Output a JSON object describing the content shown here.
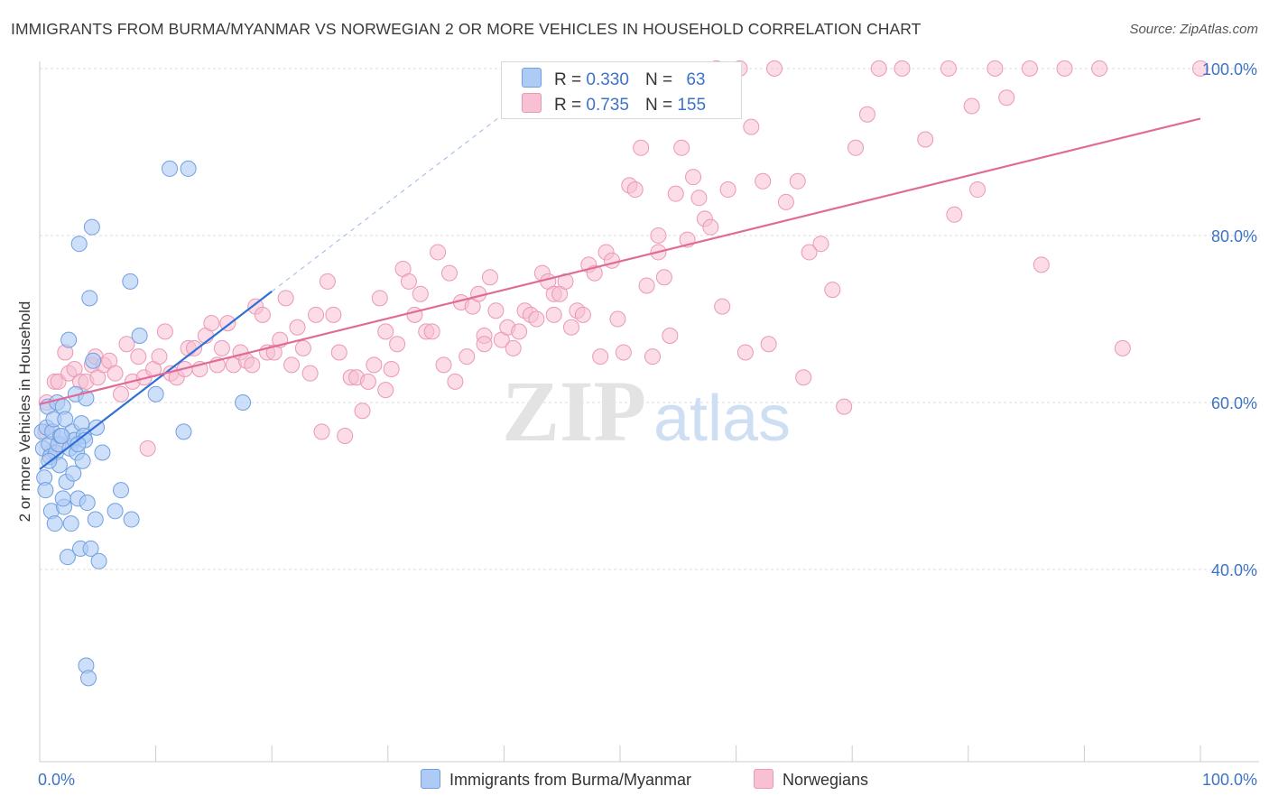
{
  "title": "IMMIGRANTS FROM BURMA/MYANMAR VS NORWEGIAN 2 OR MORE VEHICLES IN HOUSEHOLD CORRELATION CHART",
  "source": "Source: ZipAtlas.com",
  "watermark": {
    "zip": "ZIP",
    "atlas": "atlas"
  },
  "legend": {
    "r_label": "R =",
    "n_label": "N =",
    "series": [
      {
        "name": "Immigrants from Burma/Myanmar",
        "r": "0.330",
        "n": "63"
      },
      {
        "name": "Norwegians",
        "r": "0.735",
        "n": "155"
      }
    ]
  },
  "colors": {
    "blue_fill": "#aecbf5",
    "blue_stroke": "#6f9fe0",
    "blue_line": "#2f6fd6",
    "pink_fill": "#f7c0d3",
    "pink_stroke": "#eb98b6",
    "pink_line": "#e06b97",
    "grid": "#dddddd",
    "axis_tick_text": "#3d73c7"
  },
  "chart_data": {
    "type": "scatter",
    "title": "IMMIGRANTS FROM BURMA/MYANMAR VS NORWEGIAN 2 OR MORE VEHICLES IN HOUSEHOLD CORRELATION CHART",
    "xlabel": "",
    "ylabel": "2 or more Vehicles in Household",
    "xlim": [
      0,
      100
    ],
    "ylim": [
      18.5,
      101.5
    ],
    "x_tick_labels": [
      "0.0%",
      "100.0%"
    ],
    "y_ticks": [
      40,
      60,
      80,
      100
    ],
    "y_tick_labels": [
      "40.0%",
      "60.0%",
      "80.0%",
      "100.0%"
    ],
    "series": [
      {
        "name": "Immigrants from Burma/Myanmar",
        "trend": {
          "x": [
            0,
            20
          ],
          "y": [
            52.0,
            73.3
          ],
          "dashed_to": [
            40,
            94.6
          ]
        },
        "points": [
          [
            0.2,
            56.5
          ],
          [
            0.3,
            54.5
          ],
          [
            0.4,
            51.0
          ],
          [
            0.5,
            49.5
          ],
          [
            0.6,
            57.0
          ],
          [
            0.7,
            59.5
          ],
          [
            0.8,
            55.0
          ],
          [
            0.9,
            53.5
          ],
          [
            1.0,
            47.0
          ],
          [
            1.1,
            56.5
          ],
          [
            1.2,
            58.0
          ],
          [
            1.4,
            54.0
          ],
          [
            1.5,
            60.0
          ],
          [
            1.6,
            55.0
          ],
          [
            1.7,
            52.5
          ],
          [
            1.8,
            56.0
          ],
          [
            2.0,
            59.5
          ],
          [
            2.1,
            47.5
          ],
          [
            2.2,
            58.0
          ],
          [
            2.3,
            50.5
          ],
          [
            2.4,
            41.5
          ],
          [
            2.5,
            67.5
          ],
          [
            2.6,
            54.5
          ],
          [
            2.7,
            45.5
          ],
          [
            2.8,
            56.5
          ],
          [
            3.0,
            55.5
          ],
          [
            3.1,
            61.0
          ],
          [
            3.2,
            54.0
          ],
          [
            3.3,
            48.5
          ],
          [
            3.5,
            42.5
          ],
          [
            3.6,
            57.5
          ],
          [
            3.7,
            53.0
          ],
          [
            3.8,
            56.0
          ],
          [
            3.9,
            55.5
          ],
          [
            4.0,
            28.5
          ],
          [
            4.1,
            48.0
          ],
          [
            4.2,
            27.0
          ],
          [
            4.3,
            72.5
          ],
          [
            4.4,
            42.5
          ],
          [
            4.5,
            81.0
          ],
          [
            4.6,
            65.0
          ],
          [
            4.8,
            46.0
          ],
          [
            4.9,
            57.0
          ],
          [
            5.1,
            41.0
          ],
          [
            5.4,
            54.0
          ],
          [
            6.5,
            47.0
          ],
          [
            7.0,
            49.5
          ],
          [
            7.8,
            74.5
          ],
          [
            7.9,
            46.0
          ],
          [
            8.6,
            68.0
          ],
          [
            10.0,
            61.0
          ],
          [
            11.2,
            88.0
          ],
          [
            12.4,
            56.5
          ],
          [
            12.8,
            88.0
          ],
          [
            17.5,
            60.0
          ],
          [
            3.4,
            79.0
          ],
          [
            1.3,
            45.5
          ],
          [
            2.9,
            51.5
          ],
          [
            0.8,
            53.0
          ],
          [
            1.9,
            56.0
          ],
          [
            2.0,
            48.5
          ],
          [
            4.0,
            60.5
          ],
          [
            3.3,
            55.0
          ]
        ]
      },
      {
        "name": "Norwegians",
        "trend": {
          "x": [
            0,
            100
          ],
          "y": [
            59.8,
            94.0
          ]
        },
        "points": [
          [
            0.5,
            56.5
          ],
          [
            0.6,
            60.0
          ],
          [
            1.0,
            54.0
          ],
          [
            1.3,
            62.5
          ],
          [
            1.6,
            62.5
          ],
          [
            1.8,
            55.0
          ],
          [
            2.2,
            66.0
          ],
          [
            2.5,
            63.5
          ],
          [
            3.0,
            64.0
          ],
          [
            3.5,
            62.5
          ],
          [
            4.0,
            62.5
          ],
          [
            4.5,
            64.5
          ],
          [
            4.8,
            65.5
          ],
          [
            5.0,
            63.0
          ],
          [
            5.5,
            64.5
          ],
          [
            6.0,
            65.0
          ],
          [
            6.5,
            63.5
          ],
          [
            7.0,
            61.0
          ],
          [
            7.5,
            67.0
          ],
          [
            8.0,
            62.5
          ],
          [
            8.5,
            65.5
          ],
          [
            9.0,
            63.0
          ],
          [
            9.3,
            54.5
          ],
          [
            9.8,
            64.0
          ],
          [
            10.3,
            65.5
          ],
          [
            10.8,
            68.5
          ],
          [
            11.3,
            63.5
          ],
          [
            11.8,
            63.0
          ],
          [
            12.5,
            64.0
          ],
          [
            12.8,
            66.5
          ],
          [
            13.3,
            66.5
          ],
          [
            13.8,
            64.0
          ],
          [
            14.3,
            68.0
          ],
          [
            14.8,
            69.5
          ],
          [
            15.3,
            64.5
          ],
          [
            15.7,
            66.5
          ],
          [
            16.2,
            69.5
          ],
          [
            16.7,
            64.5
          ],
          [
            17.3,
            66.0
          ],
          [
            17.8,
            65.0
          ],
          [
            18.3,
            64.5
          ],
          [
            18.6,
            71.5
          ],
          [
            19.2,
            70.5
          ],
          [
            19.6,
            66.0
          ],
          [
            20.2,
            66.0
          ],
          [
            20.7,
            67.5
          ],
          [
            21.2,
            72.5
          ],
          [
            21.7,
            64.5
          ],
          [
            22.2,
            69.0
          ],
          [
            22.7,
            66.5
          ],
          [
            23.3,
            63.5
          ],
          [
            23.8,
            70.5
          ],
          [
            24.3,
            56.5
          ],
          [
            24.8,
            74.5
          ],
          [
            25.3,
            70.5
          ],
          [
            25.8,
            66.0
          ],
          [
            26.3,
            56.0
          ],
          [
            26.8,
            63.0
          ],
          [
            27.3,
            63.0
          ],
          [
            27.8,
            59.0
          ],
          [
            28.3,
            62.5
          ],
          [
            28.8,
            64.5
          ],
          [
            29.3,
            72.5
          ],
          [
            29.8,
            68.5
          ],
          [
            30.3,
            64.0
          ],
          [
            30.8,
            67.0
          ],
          [
            31.3,
            76.0
          ],
          [
            31.8,
            74.5
          ],
          [
            32.3,
            70.5
          ],
          [
            32.8,
            73.0
          ],
          [
            33.3,
            68.5
          ],
          [
            33.8,
            68.5
          ],
          [
            34.3,
            78.0
          ],
          [
            34.8,
            64.5
          ],
          [
            35.3,
            75.5
          ],
          [
            35.8,
            62.5
          ],
          [
            36.3,
            72.0
          ],
          [
            36.8,
            65.5
          ],
          [
            37.3,
            71.5
          ],
          [
            37.8,
            73.0
          ],
          [
            38.3,
            68.0
          ],
          [
            38.8,
            75.0
          ],
          [
            39.3,
            71.0
          ],
          [
            39.8,
            67.5
          ],
          [
            40.3,
            69.0
          ],
          [
            40.8,
            66.5
          ],
          [
            41.3,
            68.5
          ],
          [
            41.8,
            71.0
          ],
          [
            42.3,
            70.5
          ],
          [
            42.8,
            70.0
          ],
          [
            43.3,
            75.5
          ],
          [
            43.8,
            74.5
          ],
          [
            44.3,
            73.0
          ],
          [
            44.8,
            73.0
          ],
          [
            45.3,
            74.5
          ],
          [
            45.8,
            69.0
          ],
          [
            46.3,
            71.0
          ],
          [
            46.8,
            70.5
          ],
          [
            47.3,
            76.5
          ],
          [
            47.8,
            75.5
          ],
          [
            48.3,
            65.5
          ],
          [
            48.8,
            78.0
          ],
          [
            49.3,
            77.0
          ],
          [
            49.8,
            70.0
          ],
          [
            50.3,
            66.0
          ],
          [
            50.8,
            86.0
          ],
          [
            51.3,
            85.5
          ],
          [
            51.8,
            90.5
          ],
          [
            52.3,
            74.0
          ],
          [
            52.8,
            65.5
          ],
          [
            53.3,
            80.0
          ],
          [
            53.8,
            75.0
          ],
          [
            54.3,
            68.0
          ],
          [
            54.8,
            85.0
          ],
          [
            55.3,
            90.5
          ],
          [
            55.8,
            79.5
          ],
          [
            56.3,
            87.0
          ],
          [
            56.8,
            84.5
          ],
          [
            57.3,
            82.0
          ],
          [
            57.8,
            81.0
          ],
          [
            58.3,
            100.0
          ],
          [
            59.3,
            85.5
          ],
          [
            60.3,
            100.0
          ],
          [
            61.3,
            93.0
          ],
          [
            62.3,
            86.5
          ],
          [
            63.3,
            100.0
          ],
          [
            64.3,
            84.0
          ],
          [
            65.3,
            86.5
          ],
          [
            66.3,
            78.0
          ],
          [
            67.3,
            79.0
          ],
          [
            68.3,
            73.5
          ],
          [
            69.3,
            59.5
          ],
          [
            70.3,
            90.5
          ],
          [
            71.3,
            94.5
          ],
          [
            72.3,
            100.0
          ],
          [
            74.3,
            100.0
          ],
          [
            76.3,
            91.5
          ],
          [
            78.3,
            100.0
          ],
          [
            78.8,
            82.5
          ],
          [
            80.3,
            95.5
          ],
          [
            80.8,
            85.5
          ],
          [
            82.3,
            100.0
          ],
          [
            83.3,
            96.5
          ],
          [
            85.3,
            100.0
          ],
          [
            86.3,
            76.5
          ],
          [
            88.3,
            100.0
          ],
          [
            91.3,
            100.0
          ],
          [
            93.3,
            66.5
          ],
          [
            100.0,
            100.0
          ],
          [
            58.8,
            71.5
          ],
          [
            60.8,
            66.0
          ],
          [
            62.8,
            67.0
          ],
          [
            65.8,
            63.0
          ],
          [
            53.3,
            78.0
          ],
          [
            44.3,
            70.5
          ],
          [
            38.3,
            67.0
          ],
          [
            29.8,
            61.5
          ]
        ]
      }
    ]
  }
}
